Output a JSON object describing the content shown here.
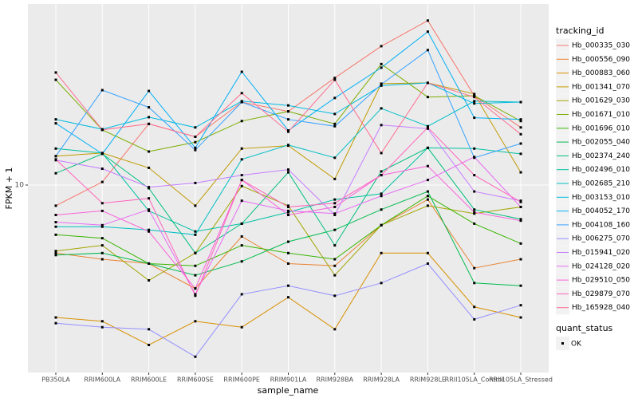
{
  "chart_data": {
    "type": "line",
    "y_label": "FPKM + 1",
    "x_label": "sample_name",
    "log_y": true,
    "ylim": [
      1.65,
      57
    ],
    "yticks": [
      10
    ],
    "grid": true,
    "categories": [
      "PB350LA",
      "RRIM600LA",
      "RRIM600LE",
      "RRIM600SE",
      "RRIM600PE",
      "RRIM901LA",
      "RRIM928BA",
      "RRIM928LA",
      "RRIM928LE",
      "RRII105LA_Control",
      "RRII105LA_Stressed"
    ],
    "legend_title": "tracking_id",
    "points_legend_title": "quant_status",
    "points_legend_label": "OK",
    "point_color": "#000000",
    "series": [
      {
        "name": "Hb_000335_030",
        "color": "#F8766D",
        "values": [
          8.2,
          10.3,
          18,
          15.9,
          22.2,
          20.3,
          28,
          38,
          48.6,
          23.6,
          17.4
        ]
      },
      {
        "name": "Hb_000556_090",
        "color": "#EA8331",
        "values": [
          5.2,
          4.9,
          4.7,
          3.7,
          6.1,
          4.7,
          4.6,
          6.8,
          8.7,
          4.5,
          4.9
        ]
      },
      {
        "name": "Hb_000883_060",
        "color": "#D89000",
        "values": [
          2.8,
          2.7,
          2.15,
          2.7,
          2.55,
          3.4,
          2.5,
          5.2,
          5.2,
          3.1,
          2.8
        ]
      },
      {
        "name": "Hb_001341_070",
        "color": "#C09B00",
        "values": [
          13.2,
          13.6,
          11.8,
          8.2,
          14.2,
          14.6,
          10.6,
          26.5,
          26.7,
          24,
          11.3
        ]
      },
      {
        "name": "Hb_001629_030",
        "color": "#A3A500",
        "values": [
          5.3,
          5.6,
          4.0,
          5.2,
          9.9,
          8.2,
          4.2,
          6.8,
          8.2,
          7.6,
          8.1
        ]
      },
      {
        "name": "Hb_001671_010",
        "color": "#7CAE00",
        "values": [
          27.5,
          17,
          13.8,
          15.1,
          18.5,
          20.3,
          18,
          32,
          23.3,
          23.6,
          18.5
        ]
      },
      {
        "name": "Hb_001696_010",
        "color": "#39B600",
        "values": [
          6.2,
          6.0,
          4.7,
          4.6,
          5.6,
          5.2,
          4.9,
          6.8,
          9.0,
          6.9,
          5.7
        ]
      },
      {
        "name": "Hb_002055_040",
        "color": "#00BB4E",
        "values": [
          5.1,
          5.2,
          4.7,
          4.2,
          4.8,
          5.8,
          6.5,
          7.9,
          9.4,
          3.9,
          3.8
        ]
      },
      {
        "name": "Hb_002374_240",
        "color": "#00BF7D",
        "values": [
          11.2,
          13.5,
          9.7,
          5.2,
          6.9,
          11.3,
          5.6,
          11.4,
          14.3,
          7.9,
          7.2
        ]
      },
      {
        "name": "Hb_002496_010",
        "color": "#00C1A3",
        "values": [
          14.2,
          13.6,
          7.8,
          6.4,
          6.9,
          7.7,
          8.7,
          9.2,
          14.3,
          14.2,
          13.5
        ]
      },
      {
        "name": "Hb_002685_210",
        "color": "#00BFC4",
        "values": [
          6.7,
          6.7,
          6.5,
          6.2,
          12.8,
          14.7,
          13,
          20.9,
          17.6,
          22.4,
          22.2
        ]
      },
      {
        "name": "Hb_003153_010",
        "color": "#00BAE0",
        "values": [
          18.8,
          17.1,
          19.2,
          17.4,
          22.4,
          21.5,
          19.8,
          26,
          26.7,
          21.9,
          22.2
        ]
      },
      {
        "name": "Hb_004052_170",
        "color": "#00B0F6",
        "values": [
          18.1,
          13.5,
          24.7,
          14.3,
          29.7,
          16.9,
          23.1,
          30.9,
          43.7,
          19.1,
          18.8
        ]
      },
      {
        "name": "Hb_004108_160",
        "color": "#35A2FF",
        "values": [
          13.2,
          24.9,
          21.1,
          14,
          22.2,
          18.8,
          17.6,
          26.3,
          36.6,
          13,
          14.9
        ]
      },
      {
        "name": "Hb_006275_070",
        "color": "#9590FF",
        "values": [
          2.65,
          2.55,
          2.5,
          1.92,
          3.5,
          3.8,
          3.45,
          3.9,
          4.7,
          2.75,
          3.15
        ]
      },
      {
        "name": "Hb_015941_020",
        "color": "#C77CFF",
        "values": [
          12.7,
          11.7,
          9.8,
          10.2,
          11,
          11.6,
          7.5,
          17.8,
          17.2,
          9.4,
          8.6
        ]
      },
      {
        "name": "Hb_024128_020",
        "color": "#E76BF3",
        "values": [
          7.0,
          6.8,
          7.9,
          3.5,
          8.6,
          7.8,
          7.6,
          9.0,
          10.5,
          13.1,
          8.1
        ]
      },
      {
        "name": "Hb_029510_050",
        "color": "#FA62DB",
        "values": [
          7.5,
          7.8,
          6.4,
          3.7,
          10.5,
          7.5,
          8.1,
          11,
          12.0,
          7.7,
          7.1
        ]
      },
      {
        "name": "Hb_029879_070",
        "color": "#FF62BC",
        "values": [
          12.8,
          8.4,
          8.8,
          3.45,
          10.5,
          8.1,
          8.4,
          11,
          17.4,
          11,
          8.5
        ]
      },
      {
        "name": "Hb_165928_040",
        "color": "#FF6C91",
        "values": [
          29.5,
          17,
          18,
          15.9,
          24.2,
          16.7,
          27.5,
          13.6,
          26.7,
          23.3,
          16.3
        ]
      }
    ]
  }
}
